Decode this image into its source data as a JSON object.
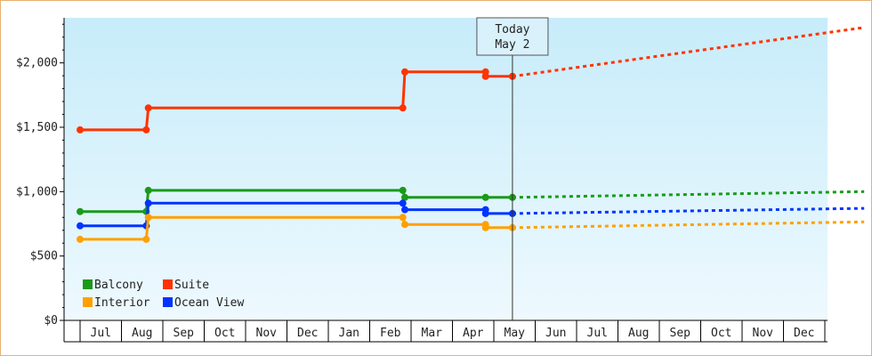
{
  "chart_data": {
    "type": "line",
    "today_label": [
      "Today",
      "May 2"
    ],
    "y_ticks": [
      "$0",
      "$500",
      "$1,000",
      "$1,500",
      "$2,000"
    ],
    "ylim": [
      0,
      2350
    ],
    "x_months": [
      "Jul",
      "Aug",
      "Sep",
      "Oct",
      "Nov",
      "Dec",
      "Jan",
      "Feb",
      "Mar",
      "Apr",
      "May",
      "Jun",
      "Jul",
      "Aug",
      "Sep",
      "Oct",
      "Nov",
      "Dec"
    ],
    "legend": [
      {
        "name": "Balcony",
        "color": "#1a9a1a"
      },
      {
        "name": "Suite",
        "color": "#ff3300"
      },
      {
        "name": "Interior",
        "color": "#ffa000"
      },
      {
        "name": "Ocean View",
        "color": "#0033ff"
      }
    ],
    "series": [
      {
        "name": "Suite",
        "color": "#ff3300",
        "history": [
          [
            0.0,
            1480
          ],
          [
            1.6,
            1480
          ],
          [
            1.65,
            1650
          ],
          [
            7.8,
            1650
          ],
          [
            7.85,
            1930
          ],
          [
            9.8,
            1930
          ],
          [
            9.8,
            1895
          ],
          [
            10.45,
            1895
          ]
        ],
        "markers": [
          [
            0.0,
            1480
          ],
          [
            1.6,
            1480
          ],
          [
            1.65,
            1650
          ],
          [
            7.8,
            1650
          ],
          [
            7.85,
            1930
          ],
          [
            9.8,
            1930
          ],
          [
            9.8,
            1895
          ],
          [
            10.45,
            1895
          ]
        ],
        "forecast": [
          [
            10.45,
            1895
          ],
          [
            18.95,
            2275
          ]
        ]
      },
      {
        "name": "Balcony",
        "color": "#1a9a1a",
        "history": [
          [
            0.0,
            845
          ],
          [
            1.6,
            845
          ],
          [
            1.65,
            1010
          ],
          [
            7.8,
            1010
          ],
          [
            7.85,
            955
          ],
          [
            10.45,
            955
          ]
        ],
        "markers": [
          [
            0.0,
            845
          ],
          [
            1.6,
            845
          ],
          [
            1.65,
            1010
          ],
          [
            7.8,
            1010
          ],
          [
            7.85,
            955
          ],
          [
            9.8,
            955
          ],
          [
            10.45,
            955
          ]
        ],
        "forecast": [
          [
            10.45,
            955
          ],
          [
            18.95,
            1000
          ]
        ]
      },
      {
        "name": "Ocean View",
        "color": "#0033ff",
        "history": [
          [
            0.0,
            735
          ],
          [
            1.6,
            735
          ],
          [
            1.65,
            910
          ],
          [
            7.8,
            910
          ],
          [
            7.85,
            860
          ],
          [
            9.8,
            860
          ],
          [
            9.8,
            830
          ],
          [
            10.45,
            830
          ]
        ],
        "markers": [
          [
            0.0,
            735
          ],
          [
            1.6,
            735
          ],
          [
            1.65,
            910
          ],
          [
            7.8,
            910
          ],
          [
            7.85,
            860
          ],
          [
            9.8,
            860
          ],
          [
            9.8,
            830
          ],
          [
            10.45,
            830
          ]
        ],
        "forecast": [
          [
            10.45,
            830
          ],
          [
            18.95,
            870
          ]
        ]
      },
      {
        "name": "Interior",
        "color": "#ffa000",
        "history": [
          [
            0.0,
            630
          ],
          [
            1.6,
            630
          ],
          [
            1.65,
            800
          ],
          [
            7.8,
            800
          ],
          [
            7.85,
            745
          ],
          [
            9.8,
            745
          ],
          [
            9.8,
            720
          ],
          [
            10.45,
            720
          ]
        ],
        "markers": [
          [
            0.0,
            630
          ],
          [
            1.6,
            630
          ],
          [
            1.65,
            800
          ],
          [
            7.8,
            800
          ],
          [
            7.85,
            745
          ],
          [
            9.8,
            745
          ],
          [
            9.8,
            720
          ],
          [
            10.45,
            720
          ]
        ],
        "forecast": [
          [
            10.45,
            720
          ],
          [
            18.95,
            765
          ]
        ]
      }
    ],
    "grid": false,
    "legend_placement": "bottom-left"
  }
}
